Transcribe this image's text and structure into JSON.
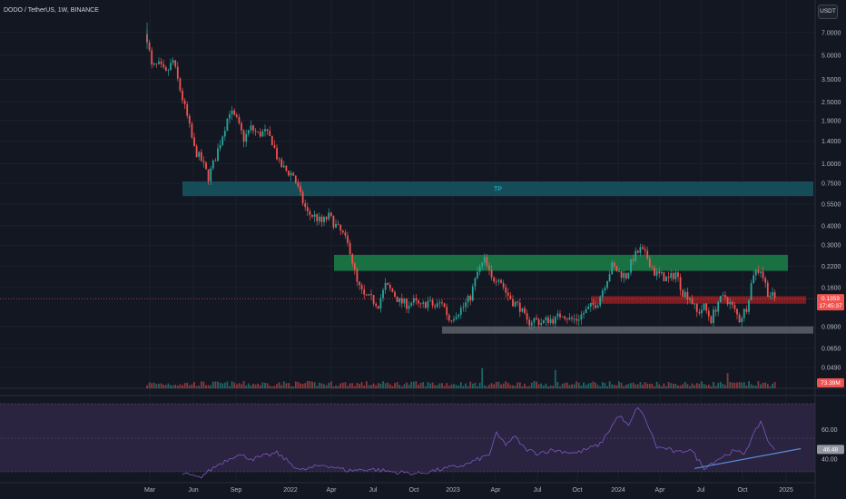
{
  "header": {
    "title": "DODO / TetherUS, 1W, BINANCE",
    "currency": "USDT"
  },
  "colors": {
    "background": "#131722",
    "up": "#26a69a",
    "down": "#ef5350",
    "grid": "#1e222d",
    "rsi_line": "#7e57c2",
    "rsi_band": "#2a2440",
    "tp_zone": "#17525e",
    "support_green": "#1b7a45",
    "support_red": "#8a1d22",
    "support_gray": "#5d6069",
    "trendline": "#5b8bd9"
  },
  "chart_data": [
    {
      "type": "candlestick",
      "title": "",
      "scale": "log",
      "ylim": [
        0.038,
        8.2
      ],
      "y_ticks": [
        "7.0000",
        "5.0000",
        "3.5000",
        "2.5000",
        "1.9000",
        "1.4000",
        "1.0000",
        "0.7500",
        "0.5500",
        "0.4000",
        "0.3000",
        "0.2200",
        "0.1600",
        "0.0900",
        "0.0650",
        "0.0490"
      ],
      "x_ticks": [
        "Mar",
        "Jun",
        "Sep",
        "2022",
        "Apr",
        "Jul",
        "Oct",
        "2023",
        "Apr",
        "Jul",
        "Oct",
        "2024",
        "Apr",
        "Jul",
        "Oct",
        "2025"
      ],
      "last_price": "0.1359",
      "countdown": "17:45:37",
      "anchors": [
        [
          0,
          6.5
        ],
        [
          2,
          4.2
        ],
        [
          5,
          4.3
        ],
        [
          8,
          3.8
        ],
        [
          11,
          4.6
        ],
        [
          14,
          3.0
        ],
        [
          17,
          2.0
        ],
        [
          20,
          1.25
        ],
        [
          23,
          1.05
        ],
        [
          26,
          0.82
        ],
        [
          29,
          1.1
        ],
        [
          32,
          1.55
        ],
        [
          35,
          2.2
        ],
        [
          38,
          1.9
        ],
        [
          41,
          1.45
        ],
        [
          44,
          1.7
        ],
        [
          47,
          1.55
        ],
        [
          50,
          1.6
        ],
        [
          53,
          1.4
        ],
        [
          56,
          1.0
        ],
        [
          59,
          0.9
        ],
        [
          62,
          0.85
        ],
        [
          65,
          0.62
        ],
        [
          68,
          0.48
        ],
        [
          71,
          0.46
        ],
        [
          74,
          0.42
        ],
        [
          77,
          0.46
        ],
        [
          80,
          0.4
        ],
        [
          83,
          0.35
        ],
        [
          86,
          0.28
        ],
        [
          89,
          0.17
        ],
        [
          92,
          0.14
        ],
        [
          95,
          0.135
        ],
        [
          98,
          0.125
        ],
        [
          101,
          0.165
        ],
        [
          104,
          0.15
        ],
        [
          107,
          0.13
        ],
        [
          110,
          0.125
        ],
        [
          113,
          0.13
        ],
        [
          116,
          0.12
        ],
        [
          119,
          0.13
        ],
        [
          122,
          0.12
        ],
        [
          125,
          0.13
        ],
        [
          128,
          0.1
        ],
        [
          131,
          0.11
        ],
        [
          134,
          0.12
        ],
        [
          137,
          0.14
        ],
        [
          140,
          0.2
        ],
        [
          143,
          0.24
        ],
        [
          146,
          0.18
        ],
        [
          149,
          0.19
        ],
        [
          152,
          0.15
        ],
        [
          155,
          0.13
        ],
        [
          158,
          0.12
        ],
        [
          161,
          0.095
        ],
        [
          164,
          0.1
        ],
        [
          167,
          0.095
        ],
        [
          170,
          0.1
        ],
        [
          173,
          0.1
        ],
        [
          176,
          0.11
        ],
        [
          179,
          0.1
        ],
        [
          182,
          0.1
        ],
        [
          185,
          0.11
        ],
        [
          188,
          0.12
        ],
        [
          191,
          0.13
        ],
        [
          194,
          0.17
        ],
        [
          197,
          0.22
        ],
        [
          200,
          0.2
        ],
        [
          203,
          0.19
        ],
        [
          206,
          0.25
        ],
        [
          209,
          0.28
        ],
        [
          212,
          0.25
        ],
        [
          215,
          0.2
        ],
        [
          218,
          0.19
        ],
        [
          221,
          0.18
        ],
        [
          224,
          0.2
        ],
        [
          227,
          0.15
        ],
        [
          230,
          0.14
        ],
        [
          233,
          0.11
        ],
        [
          236,
          0.12
        ],
        [
          239,
          0.1
        ],
        [
          242,
          0.13
        ],
        [
          245,
          0.14
        ],
        [
          248,
          0.12
        ],
        [
          251,
          0.1
        ],
        [
          254,
          0.12
        ],
        [
          257,
          0.2
        ],
        [
          260,
          0.21
        ],
        [
          263,
          0.15
        ],
        [
          266,
          0.1359
        ]
      ],
      "zones": [
        {
          "label": "TP",
          "low": 0.62,
          "high": 0.77,
          "color": "#17525e"
        },
        {
          "label": "",
          "low": 0.205,
          "high": 0.26,
          "color": "#1b7a45"
        },
        {
          "label": "",
          "low": 0.126,
          "high": 0.141,
          "color": "#8a1d22"
        },
        {
          "label": "",
          "low": 0.081,
          "high": 0.09,
          "color": "#5d6069"
        }
      ]
    },
    {
      "type": "bar",
      "title": "Volume",
      "last_value": "73.39M"
    },
    {
      "type": "line",
      "title": "RSI",
      "y_ticks": [
        "60.00",
        "40.00"
      ],
      "ylim": [
        25,
        82
      ],
      "last_value": "46.48",
      "anchors": [
        [
          15,
          30
        ],
        [
          22,
          27
        ],
        [
          30,
          36
        ],
        [
          38,
          43
        ],
        [
          45,
          40
        ],
        [
          55,
          44
        ],
        [
          65,
          32
        ],
        [
          75,
          36
        ],
        [
          85,
          32
        ],
        [
          95,
          33
        ],
        [
          105,
          31
        ],
        [
          115,
          30
        ],
        [
          125,
          33
        ],
        [
          135,
          36
        ],
        [
          145,
          43
        ],
        [
          148,
          57
        ],
        [
          152,
          50
        ],
        [
          156,
          55
        ],
        [
          160,
          47
        ],
        [
          165,
          44
        ],
        [
          172,
          46
        ],
        [
          182,
          44
        ],
        [
          192,
          50
        ],
        [
          200,
          70
        ],
        [
          204,
          62
        ],
        [
          208,
          76
        ],
        [
          212,
          64
        ],
        [
          216,
          48
        ],
        [
          220,
          47
        ],
        [
          225,
          44
        ],
        [
          230,
          47
        ],
        [
          236,
          34
        ],
        [
          242,
          40
        ],
        [
          248,
          45
        ],
        [
          253,
          44
        ],
        [
          257,
          56
        ],
        [
          260,
          66
        ],
        [
          264,
          49
        ],
        [
          266,
          46.48
        ]
      ],
      "trendline": {
        "from": [
          232,
          33.5
        ],
        "to": [
          277,
          47
        ]
      }
    }
  ]
}
